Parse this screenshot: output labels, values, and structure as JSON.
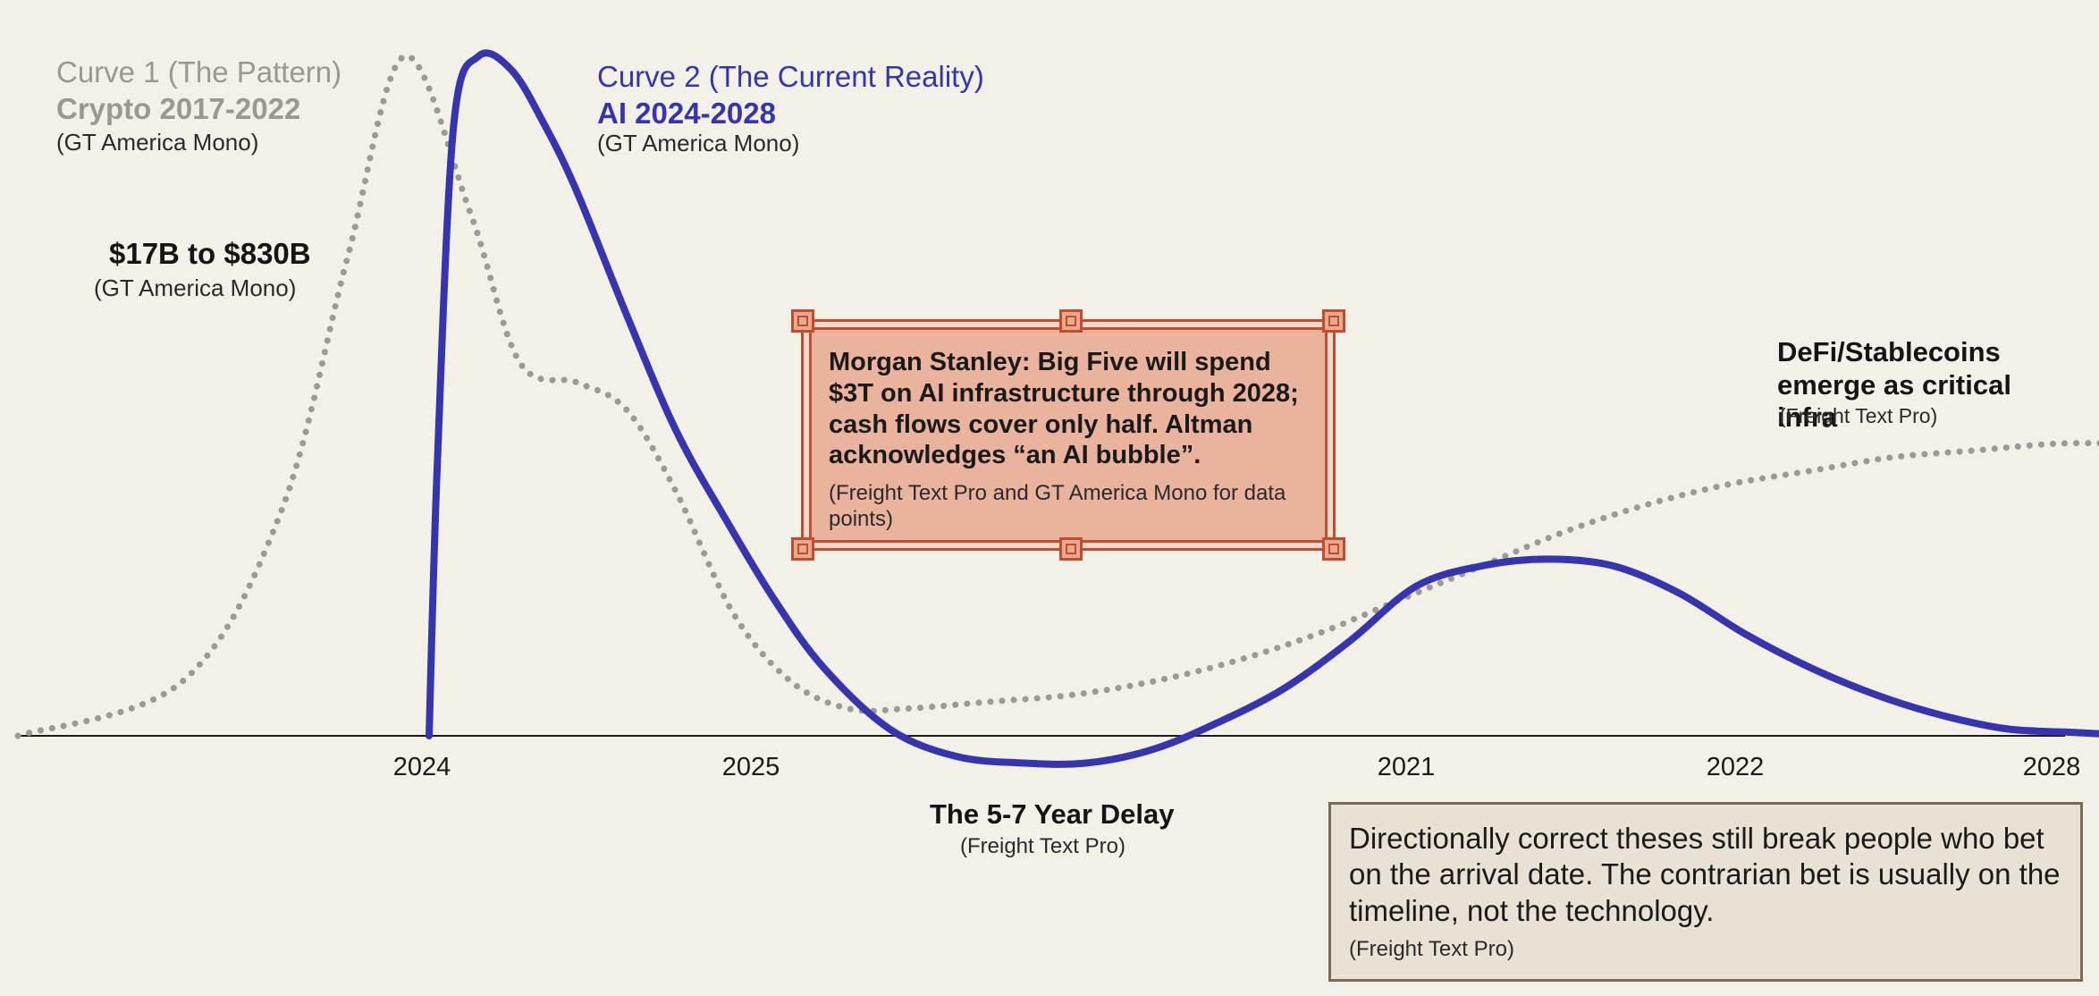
{
  "chart_data": {
    "type": "line",
    "x_ticks": [
      "2024",
      "2025",
      "2021",
      "2022",
      "2028"
    ],
    "series": [
      {
        "name": "Curve 1 (The Pattern)",
        "subtitle": "Crypto 2017-2022",
        "font_note": "(GT America Mono)",
        "style": "dotted",
        "color": "#9a9a96",
        "x": [
          0.0,
          1.0,
          1.6,
          2.0,
          2.35,
          2.75,
          3.05,
          3.4,
          3.7,
          4.0,
          4.35,
          4.7,
          5.05,
          5.4,
          5.9,
          6.4,
          6.9,
          7.4,
          7.9,
          8.4,
          8.9,
          9.4,
          9.9,
          10.4,
          10.9,
          11.4,
          11.9,
          12.4,
          12.9
        ],
        "values": [
          0.0,
          0.08,
          0.33,
          0.7,
          1.0,
          0.77,
          0.55,
          0.52,
          0.48,
          0.36,
          0.18,
          0.08,
          0.04,
          0.04,
          0.05,
          0.06,
          0.08,
          0.11,
          0.15,
          0.2,
          0.25,
          0.3,
          0.34,
          0.37,
          0.39,
          0.41,
          0.42,
          0.43,
          0.43
        ]
      },
      {
        "name": "Curve 2 (The Current Reality)",
        "subtitle": "AI 2024-2028",
        "font_note": "(GT America Mono)",
        "style": "solid",
        "color": "#3535b0",
        "x": [
          2.5,
          2.55,
          2.65,
          2.8,
          3.0,
          3.2,
          3.4,
          3.7,
          4.0,
          4.3,
          4.6,
          4.9,
          5.3,
          5.7,
          6.1,
          6.5,
          6.9,
          7.3,
          7.7,
          8.1,
          8.5,
          8.9,
          9.3,
          9.7,
          10.1,
          10.5,
          10.9,
          11.3,
          11.7,
          12.1,
          12.5,
          12.9
        ],
        "values": [
          0.0,
          0.4,
          0.9,
          1.0,
          0.98,
          0.9,
          0.8,
          0.62,
          0.45,
          0.32,
          0.2,
          0.1,
          0.01,
          -0.03,
          -0.04,
          -0.04,
          -0.02,
          0.02,
          0.07,
          0.14,
          0.22,
          0.25,
          0.26,
          0.25,
          0.21,
          0.15,
          0.1,
          0.06,
          0.03,
          0.01,
          0.005,
          0.0
        ]
      }
    ]
  },
  "curve1": {
    "title": "Curve 1 (The Pattern)",
    "subtitle": "Crypto 2017-2022",
    "font_note": "(GT America Mono)"
  },
  "curve2": {
    "title": "Curve 2 (The Current Reality)",
    "subtitle": "AI 2024-2028",
    "font_note": "(GT America Mono)"
  },
  "annotations": {
    "value_range": "$17B to $830B",
    "value_range_font": "(GT America Mono)",
    "defi": "DeFi/Stablecoins emerge as critical infra",
    "defi_font": "(Freight Text Pro)",
    "delay": "The 5-7 Year Delay",
    "delay_font": "(Freight Text Pro)"
  },
  "callout": {
    "text": "Morgan Stanley: Big Five will spend $3T on AI infrastructure through 2028; cash flows cover only half. Altman acknowledges “an AI bubble”.",
    "font_note": "(Freight Text Pro and GT America Mono for data points)"
  },
  "note": {
    "text": "Directionally correct theses still break people who bet on the arrival date. The contrarian bet is usually on the timeline, not the technology.",
    "font_note": "(Freight Text Pro)"
  },
  "colors": {
    "background": "#f3f0e7",
    "callout_fill": "#e9b39e",
    "callout_border": "#c24c2e",
    "note_fill": "#e8e2d5"
  }
}
